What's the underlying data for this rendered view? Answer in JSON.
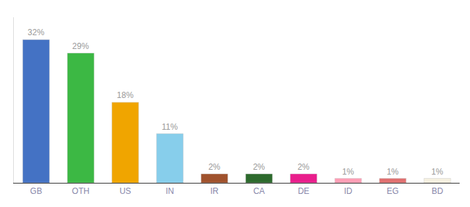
{
  "chart_data": {
    "type": "bar",
    "categories": [
      "GB",
      "OTH",
      "US",
      "IN",
      "IR",
      "CA",
      "DE",
      "ID",
      "EG",
      "BD"
    ],
    "values": [
      32,
      29,
      18,
      11,
      2,
      2,
      2,
      1,
      1,
      1
    ],
    "value_labels": [
      "32%",
      "29%",
      "18%",
      "11%",
      "2%",
      "2%",
      "2%",
      "1%",
      "1%",
      "1%"
    ],
    "colors": [
      "#4472c4",
      "#3cb844",
      "#f0a500",
      "#87ceeb",
      "#a0522d",
      "#2d6a2d",
      "#e91e8c",
      "#ff9eb5",
      "#e07070",
      "#f5f0e0"
    ],
    "ylim": [
      0,
      37
    ],
    "grid": false,
    "data_labels": true,
    "tick_labels": "x"
  }
}
